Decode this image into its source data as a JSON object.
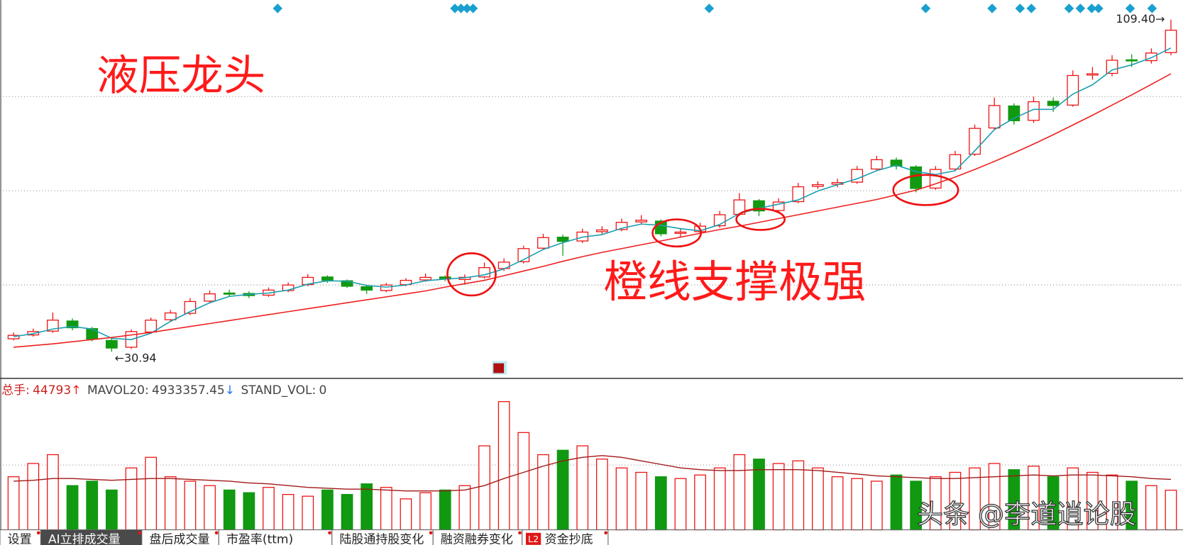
{
  "chart_data": [
    {
      "type": "candlestick",
      "annotations": [
        "液压龙头",
        "橙线支撑极强"
      ],
      "watermark": "头条 @李道逍论股",
      "ylim": [
        25,
        114
      ],
      "up_color": "#ee1111",
      "down_color": "#119911",
      "low_label": {
        "value": 30.94,
        "label": "←30.94"
      },
      "high_label": {
        "value": 109.4,
        "label": "109.40→"
      },
      "open": [
        34.0,
        34.9,
        35.8,
        38.2,
        36.4,
        33.6,
        32.0,
        35.6,
        38.5,
        40.0,
        42.9,
        44.8,
        44.7,
        44.3,
        45.4,
        46.8,
        48.6,
        47.7,
        46.3,
        45.4,
        46.8,
        47.9,
        48.6,
        48.0,
        48.6,
        50.6,
        52.2,
        55.4,
        58.0,
        57.1,
        59.3,
        59.8,
        61.6,
        61.8,
        58.9,
        59.3,
        60.7,
        63.4,
        66.6,
        64.3,
        66.4,
        70.0,
        70.5,
        71.0,
        74.1,
        76.2,
        74.6,
        69.6,
        74.1,
        77.6,
        83.8,
        89.0,
        85.6,
        90.1,
        89.2,
        96.3,
        96.7,
        99.9,
        99.7,
        101.6
      ],
      "high": [
        35.5,
        36.4,
        40.2,
        38.8,
        36.8,
        34.2,
        36.2,
        39.0,
        40.8,
        43.6,
        45.4,
        45.6,
        45.2,
        46.1,
        47.3,
        49.3,
        49.0,
        48.0,
        46.8,
        47.2,
        48.3,
        49.4,
        49.0,
        49.2,
        52.0,
        53.0,
        56.0,
        58.8,
        58.6,
        60.0,
        60.6,
        62.4,
        63.2,
        62.2,
        60.0,
        61.4,
        64.2,
        68.4,
        67.0,
        67.2,
        70.8,
        71.2,
        71.8,
        74.8,
        77.2,
        76.8,
        75.0,
        74.8,
        78.4,
        84.6,
        91.0,
        89.6,
        91.2,
        91.0,
        97.4,
        98.2,
        101.0,
        101.2,
        102.6,
        109.4
      ],
      "low": [
        33.6,
        34.5,
        35.4,
        36.0,
        33.4,
        30.94,
        31.6,
        35.2,
        38.0,
        39.6,
        42.4,
        43.9,
        43.6,
        43.9,
        45.0,
        46.4,
        47.2,
        46.0,
        44.6,
        45.0,
        46.4,
        47.5,
        47.6,
        46.8,
        48.2,
        50.0,
        51.8,
        55.0,
        53.6,
        56.6,
        58.8,
        59.4,
        61.0,
        58.2,
        58.0,
        58.9,
        60.2,
        63.0,
        63.0,
        63.8,
        66.0,
        69.4,
        69.8,
        70.6,
        73.6,
        74.0,
        68.6,
        69.2,
        73.8,
        77.2,
        83.4,
        84.6,
        85.0,
        87.6,
        88.8,
        95.2,
        96.0,
        98.2,
        99.0,
        101.0
      ],
      "close": [
        34.8,
        35.7,
        38.4,
        36.6,
        33.9,
        31.8,
        35.7,
        38.4,
        40.1,
        42.8,
        44.6,
        44.6,
        44.2,
        45.5,
        46.7,
        48.5,
        47.8,
        46.4,
        45.5,
        46.7,
        47.8,
        48.5,
        48.1,
        48.5,
        50.8,
        52.1,
        55.3,
        57.9,
        57.0,
        59.2,
        59.7,
        61.5,
        62.0,
        58.8,
        59.2,
        60.6,
        63.3,
        66.8,
        64.2,
        66.3,
        69.9,
        70.4,
        70.9,
        74.0,
        76.3,
        74.8,
        69.5,
        74.0,
        77.5,
        83.7,
        89.1,
        85.5,
        90.0,
        89.1,
        96.2,
        96.6,
        99.8,
        99.8,
        101.5,
        106.9
      ],
      "series": [
        {
          "color": "#1a9fb0",
          "values": [
            34.5,
            35.2,
            36.3,
            36.9,
            36.3,
            34.1,
            33.8,
            35.3,
            38.1,
            40.4,
            42.5,
            44.0,
            44.5,
            44.8,
            45.5,
            46.9,
            47.7,
            47.6,
            46.6,
            46.2,
            46.7,
            47.7,
            48.1,
            48.4,
            49.1,
            50.5,
            52.7,
            55.1,
            56.7,
            58.0,
            58.6,
            60.1,
            61.1,
            60.8,
            60.0,
            59.5,
            61.0,
            63.6,
            64.8,
            65.8,
            66.8,
            68.9,
            70.4,
            71.8,
            73.7,
            75.0,
            73.5,
            72.8,
            73.7,
            78.4,
            83.4,
            86.1,
            88.2,
            88.2,
            91.8,
            94.0,
            97.5,
            98.7,
            100.4,
            102.7
          ]
        },
        {
          "color": "#ee2020",
          "values": [
            32.0,
            32.4,
            32.8,
            33.3,
            33.8,
            34.3,
            34.9,
            35.5,
            36.2,
            36.9,
            37.6,
            38.3,
            39.0,
            39.7,
            40.4,
            41.1,
            41.8,
            42.5,
            43.2,
            43.9,
            44.6,
            45.3,
            46.2,
            47.0,
            47.8,
            48.9,
            50.0,
            51.1,
            52.3,
            53.4,
            54.4,
            55.3,
            56.2,
            57.1,
            58.0,
            58.9,
            59.8,
            60.6,
            61.5,
            62.4,
            63.3,
            64.2,
            65.1,
            66.0,
            66.9,
            68.0,
            69.1,
            70.6,
            72.2,
            74.0,
            75.9,
            77.9,
            80.0,
            82.2,
            84.5,
            86.8,
            89.2,
            91.6,
            94.1,
            96.6
          ]
        }
      ]
    },
    {
      "type": "bar",
      "indicators": [
        {
          "name": "总手:",
          "value": 44793,
          "arrow": "↑",
          "color": "#cc2222",
          "arrow_color": "#ee2222"
        },
        {
          "name": "MAVOL20:",
          "value": 4933357.45,
          "arrow": "↓",
          "color": "#444444",
          "arrow_color": "#2277ee"
        },
        {
          "name": "STAND_VOL:",
          "value": 0,
          "color": "#444444"
        }
      ],
      "ylim": [
        0,
        150000
      ],
      "values": [
        60000,
        75000,
        85000,
        50000,
        55000,
        45000,
        70000,
        82000,
        60000,
        55000,
        50000,
        45000,
        42000,
        48000,
        40000,
        38000,
        45000,
        40000,
        52000,
        48000,
        35000,
        42000,
        45000,
        50000,
        95000,
        145000,
        110000,
        85000,
        90000,
        95000,
        80000,
        70000,
        65000,
        60000,
        58000,
        62000,
        70000,
        85000,
        80000,
        75000,
        78000,
        70000,
        60000,
        58000,
        55000,
        62000,
        55000,
        60000,
        65000,
        70000,
        75000,
        68000,
        72000,
        60000,
        70000,
        65000,
        62000,
        55000,
        50000,
        44793
      ],
      "series": [
        {
          "color": "#a01818",
          "values": [
            55000,
            56000,
            58000,
            58000,
            57000,
            56000,
            57000,
            58000,
            58000,
            57000,
            56000,
            55000,
            53000,
            52000,
            50000,
            48000,
            47000,
            46000,
            46000,
            45000,
            44000,
            44000,
            44000,
            45000,
            50000,
            58000,
            65000,
            72000,
            78000,
            82000,
            84000,
            82000,
            78000,
            74000,
            70000,
            68000,
            67000,
            67000,
            68000,
            68000,
            68000,
            67000,
            65000,
            63000,
            61000,
            60000,
            59000,
            58000,
            58000,
            59000,
            60000,
            61000,
            62000,
            61000,
            62000,
            62000,
            61000,
            60000,
            58000,
            57000
          ]
        }
      ]
    }
  ],
  "tabs": [
    "设置",
    "AI立排成交量",
    "盘后成交量",
    "市盈率(ttm)",
    "陆股通持股变化",
    "融资融券变化",
    "资金抄底"
  ],
  "badge": "L2"
}
